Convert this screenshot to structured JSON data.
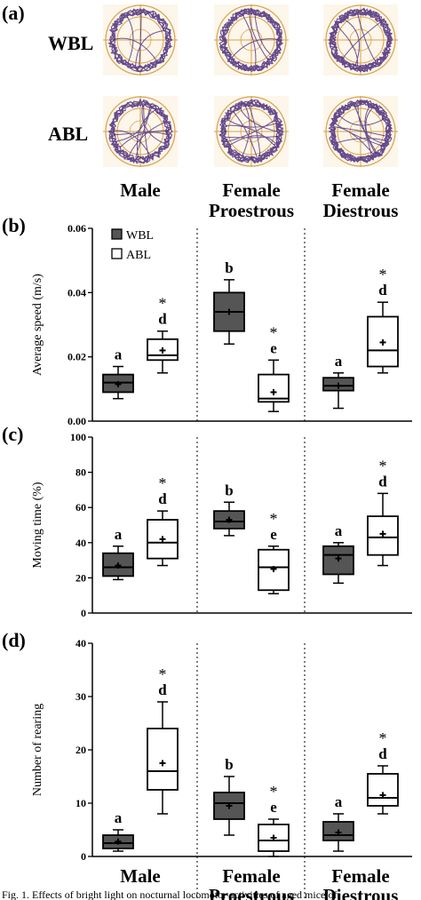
{
  "figure": {
    "panel_a": {
      "label": "(a)",
      "rows": [
        "WBL",
        "ABL"
      ]
    },
    "groups": [
      "Male",
      "Female\nProestrous",
      "Female\nDiestrous"
    ],
    "caption": "Fig. 1. Effects of bright light on nocturnal locomotor activities of aged mice of",
    "legend": [
      {
        "name": "WBL",
        "fill": "#555555"
      },
      {
        "name": "ABL",
        "fill": "#ffffff"
      }
    ],
    "colors": {
      "track": "#4a2a7a",
      "arena": "#d8a24a",
      "wbl_fill": "#555555"
    }
  },
  "chart_data": [
    {
      "type": "box",
      "panel": "(b)",
      "ylabel": "Average speed (m/s)",
      "ylim": [
        0,
        0.06
      ],
      "yticks": [
        "0.00",
        "0.02",
        "0.04",
        "0.06"
      ],
      "ytick_values": [
        0,
        0.02,
        0.04,
        0.06
      ],
      "categories": [
        "Male",
        "Female Proestrous",
        "Female Diestrous"
      ],
      "series": [
        {
          "name": "WBL",
          "boxes": [
            {
              "min": 0.007,
              "q1": 0.009,
              "median": 0.012,
              "q3": 0.0145,
              "max": 0.017,
              "mean": 0.0115,
              "label": "a"
            },
            {
              "min": 0.024,
              "q1": 0.028,
              "median": 0.034,
              "q3": 0.04,
              "max": 0.044,
              "mean": 0.034,
              "label": "b"
            },
            {
              "min": 0.004,
              "q1": 0.0095,
              "median": 0.011,
              "q3": 0.0135,
              "max": 0.015,
              "mean": 0.011,
              "label": "a"
            }
          ]
        },
        {
          "name": "ABL",
          "boxes": [
            {
              "min": 0.015,
              "q1": 0.019,
              "median": 0.0205,
              "q3": 0.0255,
              "max": 0.028,
              "mean": 0.022,
              "label": "d",
              "star": "*"
            },
            {
              "min": 0.003,
              "q1": 0.006,
              "median": 0.007,
              "q3": 0.0145,
              "max": 0.019,
              "mean": 0.009,
              "label": "e",
              "star": "*"
            },
            {
              "min": 0.015,
              "q1": 0.017,
              "median": 0.022,
              "q3": 0.0325,
              "max": 0.037,
              "mean": 0.0245,
              "label": "d",
              "star": "*"
            }
          ]
        }
      ]
    },
    {
      "type": "box",
      "panel": "(c)",
      "ylabel": "Moving time (%)",
      "ylim": [
        0,
        100
      ],
      "yticks": [
        "0",
        "20",
        "40",
        "60",
        "80",
        "100"
      ],
      "ytick_values": [
        0,
        20,
        40,
        60,
        80,
        100
      ],
      "categories": [
        "Male",
        "Female Proestrous",
        "Female Diestrous"
      ],
      "series": [
        {
          "name": "WBL",
          "boxes": [
            {
              "min": 19,
              "q1": 21,
              "median": 26,
              "q3": 34,
              "max": 38,
              "mean": 27,
              "label": "a"
            },
            {
              "min": 44,
              "q1": 48,
              "median": 52,
              "q3": 58,
              "max": 63,
              "mean": 53,
              "label": "b"
            },
            {
              "min": 17,
              "q1": 22,
              "median": 33,
              "q3": 38,
              "max": 40,
              "mean": 31,
              "label": "a"
            }
          ]
        },
        {
          "name": "ABL",
          "boxes": [
            {
              "min": 27,
              "q1": 31,
              "median": 40,
              "q3": 53,
              "max": 58,
              "mean": 42,
              "label": "d",
              "star": "*"
            },
            {
              "min": 11,
              "q1": 13,
              "median": 26,
              "q3": 36,
              "max": 38,
              "mean": 25,
              "label": "e",
              "star": "*"
            },
            {
              "min": 27,
              "q1": 33,
              "median": 43,
              "q3": 55,
              "max": 68,
              "mean": 45,
              "label": "d",
              "star": "*"
            }
          ]
        }
      ]
    },
    {
      "type": "box",
      "panel": "(d)",
      "ylabel": "Number of rearing",
      "ylim": [
        0,
        40
      ],
      "yticks": [
        "0",
        "10",
        "20",
        "30",
        "40"
      ],
      "ytick_values": [
        0,
        10,
        20,
        30,
        40
      ],
      "categories": [
        "Male",
        "Female Proestrous",
        "Female Diestrous"
      ],
      "series": [
        {
          "name": "WBL",
          "boxes": [
            {
              "min": 1,
              "q1": 1.5,
              "median": 2.5,
              "q3": 4,
              "max": 5,
              "mean": 2.8,
              "label": "a"
            },
            {
              "min": 4,
              "q1": 7,
              "median": 10,
              "q3": 12,
              "max": 15,
              "mean": 9.5,
              "label": "b"
            },
            {
              "min": 1,
              "q1": 3,
              "median": 4,
              "q3": 6.5,
              "max": 8,
              "mean": 4.5,
              "label": "a"
            }
          ]
        },
        {
          "name": "ABL",
          "boxes": [
            {
              "min": 8,
              "q1": 12.5,
              "median": 16,
              "q3": 24,
              "max": 29,
              "mean": 17.5,
              "label": "d",
              "star": "*"
            },
            {
              "min": 0,
              "q1": 1,
              "median": 3,
              "q3": 6,
              "max": 7,
              "mean": 3.5,
              "label": "e",
              "star": "*"
            },
            {
              "min": 8,
              "q1": 9.5,
              "median": 11,
              "q3": 15.5,
              "max": 17,
              "mean": 11.5,
              "label": "d",
              "star": "*"
            }
          ]
        }
      ]
    }
  ]
}
